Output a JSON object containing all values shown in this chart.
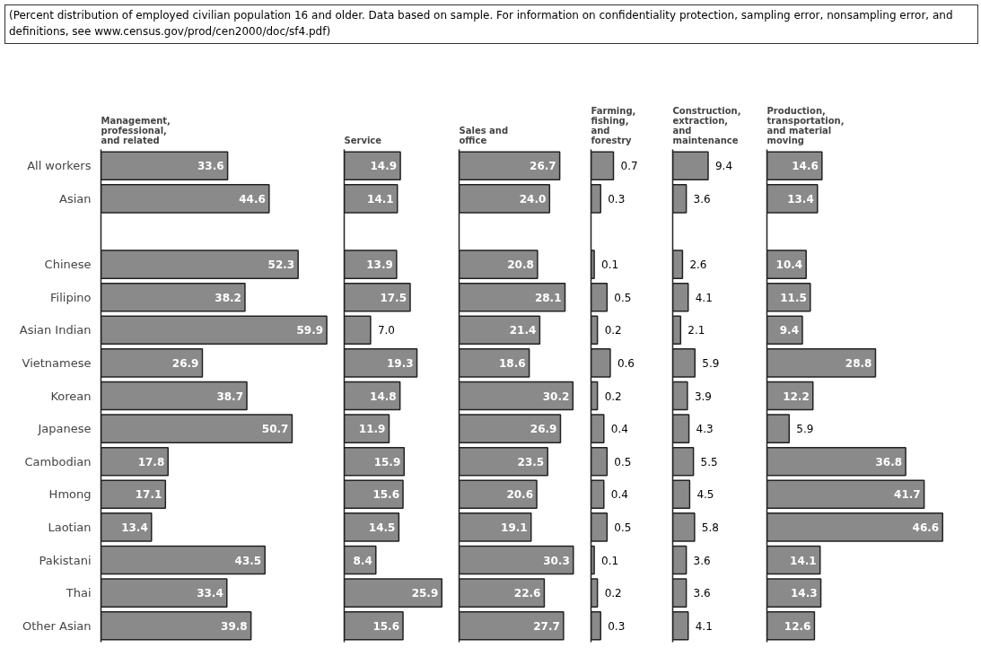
{
  "chart_data": [
    {
      "type": "bar",
      "orientation": "horizontal",
      "title": "Management,\nprofessional,\nand related",
      "annotations": [
        "(Percent distribution of employed civilian population 16 and older.  Data based on sample.  For information on confidentiality protection, sampling error, nonsampling error, and definitions, see www.census.gov/prod/cen2000/doc/sf4.pdf)"
      ],
      "categories": [
        "All workers",
        "Asian",
        null,
        "Chinese",
        "Filipino",
        "Asian Indian",
        "Vietnamese",
        "Korean",
        "Japanese",
        "Cambodian",
        "Hmong",
        "Laotian",
        "Pakistani",
        "Thai",
        "Other Asian"
      ],
      "values": [
        33.6,
        44.6,
        null,
        52.3,
        38.2,
        59.9,
        26.9,
        38.7,
        50.7,
        17.8,
        17.1,
        13.4,
        43.5,
        33.4,
        39.8
      ],
      "value_labels": [
        "33.6",
        "44.6",
        null,
        "52.3",
        "38.2",
        "59.9",
        "26.9",
        "38.7",
        "50.7",
        "17.8",
        "17.1",
        "13.4",
        "43.5",
        "33.4",
        "39.8"
      ],
      "color": "#8a8a8a",
      "tick_labels": "y"
    },
    {
      "type": "bar",
      "orientation": "horizontal",
      "title": "Service",
      "categories": [
        null,
        null,
        null,
        null,
        null,
        null,
        null,
        null,
        null,
        null,
        null,
        null,
        null,
        null,
        null
      ],
      "values": [
        14.9,
        14.1,
        null,
        13.9,
        17.5,
        7.0,
        19.3,
        14.8,
        11.9,
        15.9,
        15.6,
        14.5,
        8.4,
        25.9,
        15.6
      ],
      "value_labels": [
        "14.9",
        "14.1",
        null,
        "13.9",
        "17.5",
        "7.0",
        "19.3",
        "14.8",
        "11.9",
        "15.9",
        "15.6",
        "14.5",
        "8.4",
        "25.9",
        "15.6"
      ],
      "color": "#8a8a8a",
      "tick_labels": false
    },
    {
      "type": "bar",
      "orientation": "horizontal",
      "title": "Sales and\noffice",
      "categories": [
        null,
        null,
        null,
        null,
        null,
        null,
        null,
        null,
        null,
        null,
        null,
        null,
        null,
        null,
        null
      ],
      "values": [
        26.7,
        24.0,
        null,
        20.8,
        28.1,
        21.4,
        18.6,
        30.2,
        26.9,
        23.5,
        20.6,
        19.1,
        30.3,
        22.6,
        27.7
      ],
      "value_labels": [
        "26.7",
        "24.0",
        null,
        "20.8",
        "28.1",
        "21.4",
        "18.6",
        "30.2",
        "26.9",
        "23.5",
        "20.6",
        "19.1",
        "30.3",
        "22.6",
        "27.7"
      ],
      "color": "#8a8a8a",
      "tick_labels": false
    },
    {
      "type": "bar",
      "orientation": "horizontal",
      "title": "Farming,\nfishing,\nand\nforestry",
      "categories": [
        null,
        null,
        null,
        null,
        null,
        null,
        null,
        null,
        null,
        null,
        null,
        null,
        null,
        null,
        null
      ],
      "values": [
        0.7,
        0.3,
        null,
        0.1,
        0.5,
        0.2,
        0.6,
        0.2,
        0.4,
        0.5,
        0.4,
        0.5,
        0.1,
        0.2,
        0.3
      ],
      "value_labels": [
        "0.7",
        "0.3",
        null,
        "0.1",
        "0.5",
        "0.2",
        "0.6",
        "0.2",
        "0.4",
        "0.5",
        "0.4",
        "0.5",
        "0.1",
        "0.2",
        "0.3"
      ],
      "color": "#8a8a8a",
      "tick_labels": false
    },
    {
      "type": "bar",
      "orientation": "horizontal",
      "title": "Construction,\nextraction,\nand\nmaintenance",
      "categories": [
        null,
        null,
        null,
        null,
        null,
        null,
        null,
        null,
        null,
        null,
        null,
        null,
        null,
        null,
        null
      ],
      "values": [
        9.4,
        3.6,
        null,
        2.6,
        4.1,
        2.1,
        5.9,
        3.9,
        4.3,
        5.5,
        4.5,
        5.8,
        3.6,
        3.6,
        4.1
      ],
      "value_labels": [
        "9.4",
        "3.6",
        null,
        "2.6",
        "4.1",
        "2.1",
        "5.9",
        "3.9",
        "4.3",
        "5.5",
        "4.5",
        "5.8",
        "3.6",
        "3.6",
        "4.1"
      ],
      "color": "#8a8a8a",
      "tick_labels": false
    },
    {
      "type": "bar",
      "orientation": "horizontal",
      "title": "Production,\ntransportation,\nand material\nmoving",
      "categories": [
        null,
        null,
        null,
        null,
        null,
        null,
        null,
        null,
        null,
        null,
        null,
        null,
        null,
        null,
        null
      ],
      "values": [
        14.6,
        13.4,
        null,
        10.4,
        11.5,
        9.4,
        28.8,
        12.2,
        5.9,
        36.8,
        41.7,
        46.6,
        14.1,
        14.3,
        12.6
      ],
      "value_labels": [
        "14.6",
        "13.4",
        null,
        "10.4",
        "11.5",
        "9.4",
        "28.8",
        "12.2",
        "5.9",
        "36.8",
        "41.7",
        "46.6",
        "14.1",
        "14.3",
        "12.6"
      ],
      "color": "#8a8a8a",
      "tick_labels": false
    }
  ]
}
